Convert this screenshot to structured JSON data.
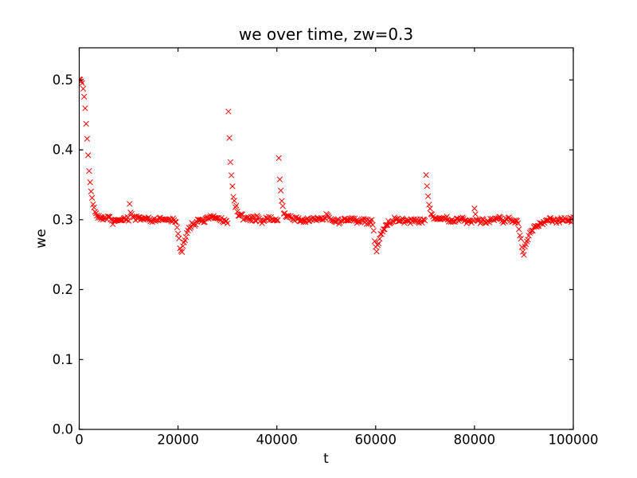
{
  "figure": {
    "background": "#ffffff",
    "frame_color": "#000000"
  },
  "chart_data": {
    "type": "scatter",
    "title": "we over time, zw=0.3",
    "xlabel": "t",
    "ylabel": "we",
    "series_name": "we",
    "marker": "x",
    "series_color": "#ff0000",
    "grid": false,
    "legend": false,
    "xlim": [
      0,
      100000
    ],
    "ylim": [
      0,
      0.546
    ],
    "x_ticks": [
      0,
      20000,
      40000,
      60000,
      80000,
      100000
    ],
    "x_tick_labels": [
      "0",
      "20000",
      "40000",
      "60000",
      "80000",
      "100000"
    ],
    "y_ticks": [
      0.0,
      0.1,
      0.2,
      0.3,
      0.4,
      0.5
    ],
    "y_tick_labels": [
      "0.0",
      "0.1",
      "0.2",
      "0.3",
      "0.4",
      "0.5"
    ],
    "tick_direction": "in",
    "baseline_we": 0.3,
    "noise_sigma_we": 0.0025,
    "sample_interval_t": 200,
    "initial_transient": {
      "t_start": 0,
      "step": 200,
      "values": [
        0.5,
        0.501,
        0.499,
        0.496,
        0.487,
        0.477,
        0.459,
        0.437,
        0.415,
        0.393,
        0.37,
        0.353,
        0.341,
        0.331,
        0.323,
        0.317,
        0.312,
        0.308,
        0.305,
        0.303
      ]
    },
    "events": [
      {
        "type": "spike",
        "t": 10200,
        "peak": 0.318,
        "decay_tau": 320
      },
      {
        "type": "dip",
        "t": 20800,
        "min": 0.251,
        "fall_duration": 1500,
        "recovery_tau": 1000
      },
      {
        "type": "spike",
        "t": 30200,
        "peak": 0.456,
        "decay_tau": 650
      },
      {
        "type": "spike",
        "t": 40400,
        "peak": 0.388,
        "decay_tau": 550
      },
      {
        "type": "spike",
        "t": 50000,
        "peak": 0.307,
        "decay_tau": 400
      },
      {
        "type": "dip",
        "t": 60200,
        "min": 0.257,
        "fall_duration": 1000,
        "recovery_tau": 1100
      },
      {
        "type": "spike",
        "t": 70200,
        "peak": 0.367,
        "decay_tau": 600
      },
      {
        "type": "spike",
        "t": 80000,
        "peak": 0.32,
        "decay_tau": 350
      },
      {
        "type": "dip",
        "t": 90000,
        "min": 0.253,
        "fall_duration": 1400,
        "recovery_tau": 1250
      }
    ]
  }
}
